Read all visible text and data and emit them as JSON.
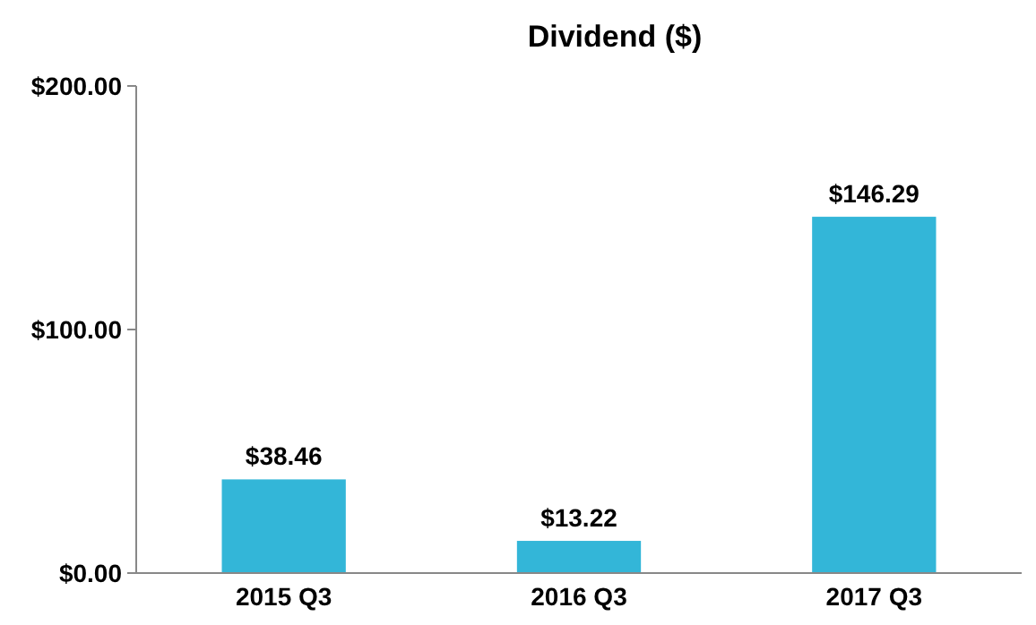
{
  "chart_data": {
    "type": "bar",
    "title": "Dividend ($)",
    "categories": [
      "2015 Q3",
      "2016 Q3",
      "2017 Q3"
    ],
    "values": [
      38.46,
      13.22,
      146.29
    ],
    "value_labels": [
      "$38.46",
      "$13.22",
      "$146.29"
    ],
    "color": "#33b6d8",
    "ylim": [
      0,
      200
    ],
    "yticks": [
      {
        "value": 0,
        "label": "$0.00"
      },
      {
        "value": 100,
        "label": "$100.00"
      },
      {
        "value": 200,
        "label": "$200.00"
      }
    ],
    "grid": false
  }
}
